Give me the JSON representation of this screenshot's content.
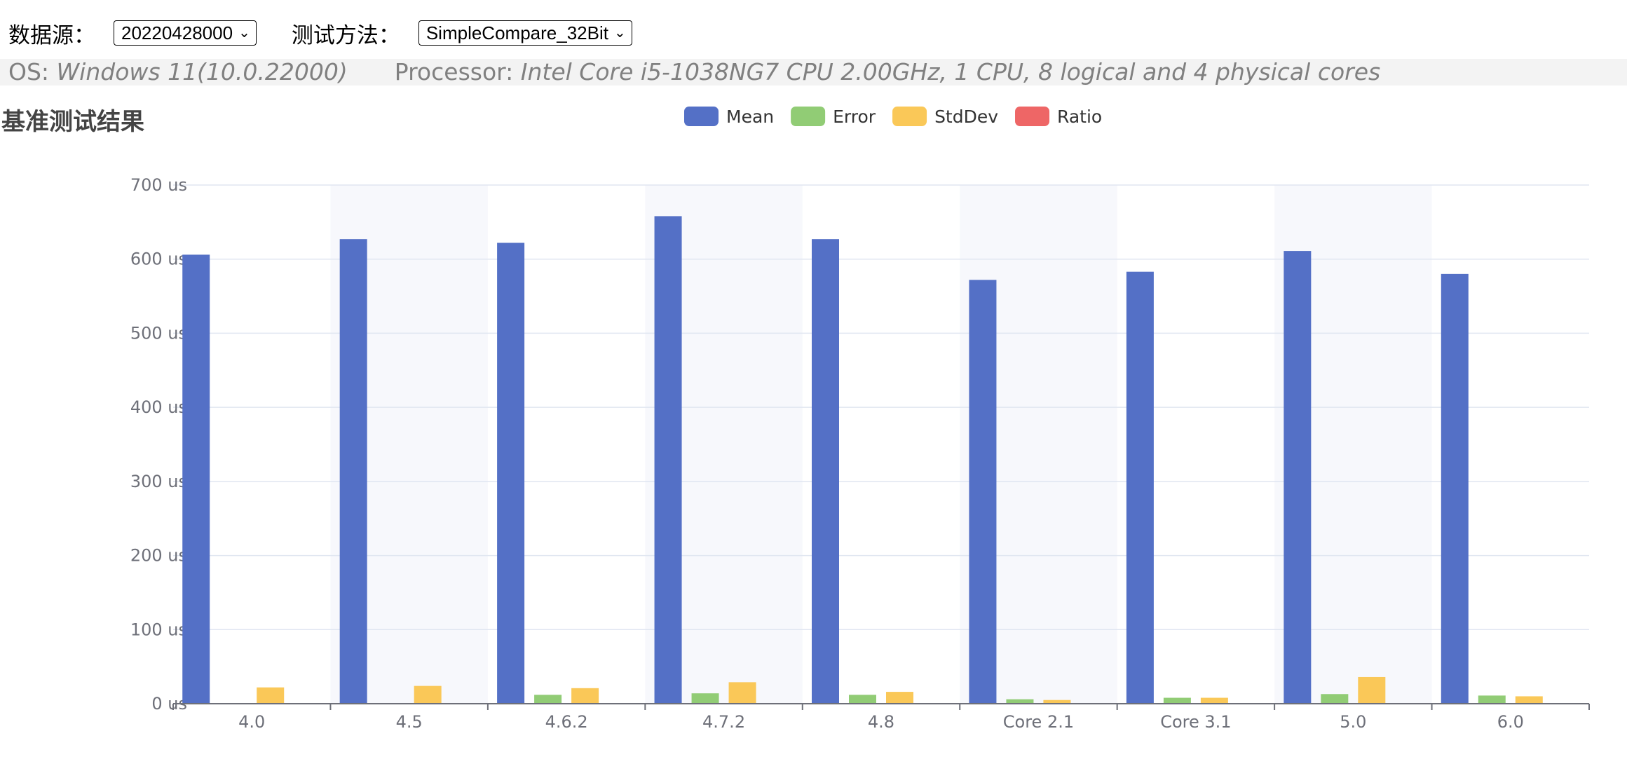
{
  "toolbar": {
    "source_label": "数据源：",
    "source_value": "20220428000",
    "method_label": "测试方法：",
    "method_value": "SimpleCompare_32Bit"
  },
  "system_info": {
    "os_label": "OS:",
    "os_value": "Windows 11(10.0.22000)",
    "processor_label": "Processor:",
    "processor_value": "Intel Core i5-1038NG7 CPU 2.00GHz, 1 CPU, 8 logical and 4 physical cores"
  },
  "chart_title": "基准测试结果",
  "chart_data": {
    "type": "bar",
    "categories": [
      "4.0",
      "4.5",
      "4.6.2",
      "4.7.2",
      "4.8",
      "Core 2.1",
      "Core 3.1",
      "5.0",
      "6.0"
    ],
    "series": [
      {
        "name": "Mean",
        "color": "#5470c6",
        "values": [
          606,
          627,
          622,
          658,
          627,
          572,
          583,
          611,
          580
        ]
      },
      {
        "name": "Error",
        "color": "#91cc75",
        "values": [
          0,
          0,
          12,
          14,
          12,
          6,
          8,
          13,
          11
        ]
      },
      {
        "name": "StdDev",
        "color": "#fac858",
        "values": [
          22,
          24,
          21,
          29,
          16,
          5,
          8,
          36,
          10
        ]
      },
      {
        "name": "Ratio",
        "color": "#ee6666",
        "values": [
          0,
          0,
          0,
          0,
          0,
          0,
          0,
          0,
          0
        ]
      }
    ],
    "y_unit": "us",
    "y_ticks": [
      "0 us",
      "100 us",
      "200 us",
      "300 us",
      "400 us",
      "500 us",
      "600 us",
      "700 us"
    ],
    "ylim": [
      0,
      700
    ],
    "grid": true,
    "legend_position": "top-center"
  }
}
